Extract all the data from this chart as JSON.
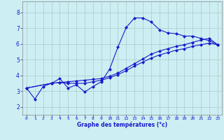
{
  "title": "Graphe des températures (°c)",
  "background_color": "#cdeef2",
  "grid_color": "#aacccc",
  "line_color": "#1a1acc",
  "marker_style": "D",
  "marker_size": 2.0,
  "line_width": 0.8,
  "xlim": [
    -0.5,
    23.5
  ],
  "ylim": [
    1.5,
    8.7
  ],
  "xticks": [
    0,
    1,
    2,
    3,
    4,
    5,
    6,
    7,
    8,
    9,
    10,
    11,
    12,
    13,
    14,
    15,
    16,
    17,
    18,
    19,
    20,
    21,
    22,
    23
  ],
  "yticks": [
    2,
    3,
    4,
    5,
    6,
    7,
    8
  ],
  "series": [
    {
      "x": [
        0,
        1,
        2,
        3,
        4,
        5,
        6,
        7,
        8,
        9,
        10,
        11,
        12,
        13,
        14,
        15,
        16,
        17,
        18,
        19,
        20,
        21,
        22,
        23
      ],
      "y": [
        3.2,
        2.5,
        3.3,
        3.5,
        3.8,
        3.2,
        3.4,
        2.95,
        3.3,
        3.6,
        4.4,
        5.8,
        7.05,
        7.65,
        7.65,
        7.4,
        6.9,
        6.7,
        6.65,
        6.5,
        6.5,
        6.35,
        6.2,
        5.95
      ]
    },
    {
      "x": [
        0,
        3,
        4,
        5,
        6,
        7,
        8,
        9,
        10,
        11,
        12,
        13,
        14,
        15,
        16,
        17,
        18,
        19,
        20,
        21,
        22,
        23
      ],
      "y": [
        3.2,
        3.5,
        3.55,
        3.5,
        3.5,
        3.5,
        3.6,
        3.7,
        3.85,
        4.05,
        4.3,
        4.6,
        4.85,
        5.1,
        5.3,
        5.45,
        5.6,
        5.7,
        5.85,
        5.95,
        6.05,
        5.95
      ]
    },
    {
      "x": [
        0,
        3,
        4,
        5,
        6,
        7,
        8,
        9,
        10,
        11,
        12,
        13,
        14,
        15,
        16,
        17,
        18,
        19,
        20,
        21,
        22,
        23
      ],
      "y": [
        3.2,
        3.5,
        3.55,
        3.6,
        3.65,
        3.7,
        3.75,
        3.8,
        3.95,
        4.15,
        4.45,
        4.75,
        5.05,
        5.35,
        5.55,
        5.7,
        5.85,
        5.95,
        6.1,
        6.25,
        6.35,
        5.95
      ]
    }
  ]
}
